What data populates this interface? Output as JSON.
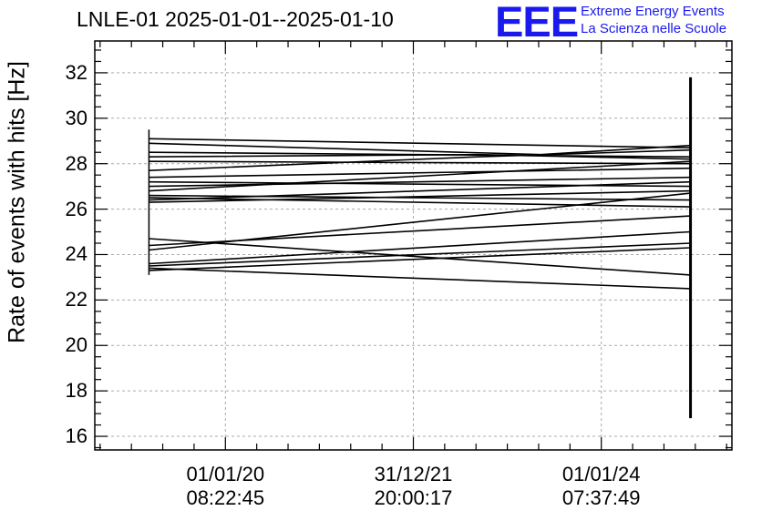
{
  "title": "LNLE-01 2025-01-01--2025-01-10",
  "logo": {
    "mark": "EEE",
    "line1": "Extreme Energy Events",
    "line2": "La Scienza nelle Scuole",
    "color": "#1a1aee"
  },
  "chart_data": {
    "type": "line",
    "title": "LNLE-01 2025-01-01--2025-01-10",
    "xlabel": "",
    "ylabel": "Rate of events with hits [Hz]",
    "ylim": [
      15.4,
      33.4
    ],
    "yticks": [
      16,
      18,
      20,
      22,
      24,
      26,
      28,
      30,
      32
    ],
    "xlim": [
      0.0,
      1.0
    ],
    "x_axis": "time",
    "xticks": [
      {
        "x": 0.205,
        "label_date": "01/01/20",
        "label_time": "08:22:45"
      },
      {
        "x": 0.5,
        "label_date": "31/12/21",
        "label_time": "20:00:17"
      },
      {
        "x": 0.795,
        "label_date": "01/01/24",
        "label_time": "07:37:49"
      }
    ],
    "grid": true,
    "series": [
      {
        "values": [
          [
            0.085,
            29.1
          ],
          [
            0.935,
            28.7
          ]
        ]
      },
      {
        "values": [
          [
            0.085,
            28.9
          ],
          [
            0.7,
            28.4
          ],
          [
            0.935,
            28.8
          ]
        ]
      },
      {
        "values": [
          [
            0.085,
            28.5
          ],
          [
            0.935,
            28.3
          ]
        ]
      },
      {
        "values": [
          [
            0.085,
            28.3
          ],
          [
            0.6,
            28.4
          ],
          [
            0.935,
            28.2
          ]
        ]
      },
      {
        "values": [
          [
            0.085,
            28.1
          ],
          [
            0.935,
            28.0
          ]
        ]
      },
      {
        "values": [
          [
            0.085,
            27.7
          ],
          [
            0.6,
            28.3
          ],
          [
            0.935,
            28.6
          ]
        ]
      },
      {
        "values": [
          [
            0.085,
            27.4
          ],
          [
            0.935,
            27.8
          ]
        ]
      },
      {
        "values": [
          [
            0.085,
            27.2
          ],
          [
            0.935,
            27.0
          ]
        ]
      },
      {
        "values": [
          [
            0.085,
            27.0
          ],
          [
            0.935,
            27.4
          ]
        ]
      },
      {
        "values": [
          [
            0.085,
            26.8
          ],
          [
            0.935,
            28.1
          ]
        ]
      },
      {
        "values": [
          [
            0.085,
            26.6
          ],
          [
            0.935,
            26.4
          ]
        ]
      },
      {
        "values": [
          [
            0.085,
            26.5
          ],
          [
            0.935,
            26.1
          ]
        ]
      },
      {
        "values": [
          [
            0.085,
            26.4
          ],
          [
            0.935,
            27.2
          ]
        ]
      },
      {
        "values": [
          [
            0.085,
            26.3
          ],
          [
            0.935,
            26.8
          ]
        ]
      },
      {
        "values": [
          [
            0.085,
            24.7
          ],
          [
            0.935,
            23.1
          ]
        ]
      },
      {
        "values": [
          [
            0.085,
            24.4
          ],
          [
            0.935,
            25.7
          ]
        ]
      },
      {
        "values": [
          [
            0.085,
            24.2
          ],
          [
            0.935,
            26.7
          ]
        ]
      },
      {
        "values": [
          [
            0.085,
            23.6
          ],
          [
            0.935,
            25.0
          ]
        ]
      },
      {
        "values": [
          [
            0.085,
            23.5
          ],
          [
            0.935,
            24.5
          ]
        ]
      },
      {
        "values": [
          [
            0.085,
            23.4
          ],
          [
            0.935,
            22.5
          ]
        ]
      },
      {
        "values": [
          [
            0.085,
            23.3
          ],
          [
            0.935,
            24.3
          ]
        ]
      }
    ],
    "spread_bars": [
      {
        "x": 0.085,
        "low": 23.1,
        "high": 29.5
      },
      {
        "x": 0.935,
        "low": 16.8,
        "high": 31.8
      }
    ]
  }
}
